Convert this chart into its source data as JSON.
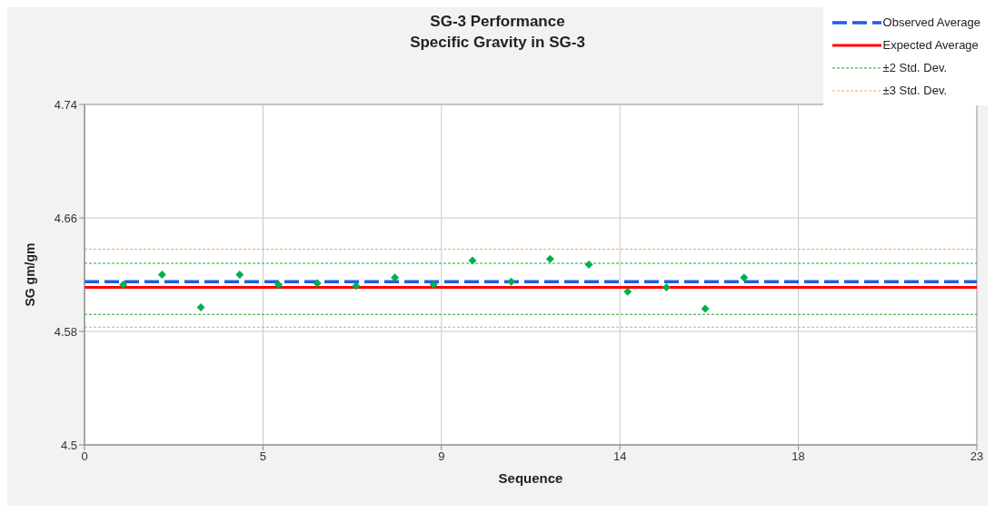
{
  "chart_data": {
    "type": "scatter",
    "title": "SG-3 Performance",
    "subtitle": "Specific Gravity in SG-3",
    "xlabel": "Sequence",
    "ylabel": "SG gm/gm",
    "x": [
      1,
      2,
      3,
      4,
      5,
      6,
      7,
      8,
      9,
      10,
      11,
      12,
      13,
      14,
      15,
      16,
      17
    ],
    "series": [
      {
        "color": "#00b050",
        "values": [
          4.613,
          4.62,
          4.597,
          4.62,
          4.613,
          4.614,
          4.612,
          4.618,
          4.613,
          4.63,
          4.615,
          4.631,
          4.627,
          4.608,
          4.611,
          4.596,
          4.618
        ]
      }
    ],
    "marker": "diamond",
    "grid": true,
    "legend": "top right",
    "xlim": [
      0,
      23
    ],
    "xticks": [
      0,
      {
        "value": 4.6,
        "label": "5"
      },
      {
        "value": 9.2,
        "label": "9"
      },
      {
        "value": 13.8,
        "label": "14"
      },
      {
        "value": 18.4,
        "label": "18"
      },
      23
    ],
    "ylim": [
      4.5,
      4.74
    ],
    "yticks": [
      4.5,
      4.58,
      4.66,
      4.74
    ],
    "ref_lines": [
      {
        "axis": "y",
        "value": 4.615,
        "label": "Observed Average",
        "color": "#1f5fe0",
        "line_style": "dashed"
      },
      {
        "axis": "y",
        "value": 4.611,
        "label": "Expected Average",
        "color": "#ff0000",
        "line_style": "solid"
      },
      {
        "axis": "y",
        "value": 4.628,
        "label": "±2 Std. Dev.",
        "color": "#2ca02c",
        "line_style": "dotted"
      },
      {
        "axis": "y",
        "value": 4.592,
        "label": null,
        "color": "#2ca02c",
        "line_style": "dotted"
      },
      {
        "axis": "y",
        "value": 4.638,
        "label": "±3 Std. Dev.",
        "color": "#f4a460",
        "line_style": "dotted"
      },
      {
        "axis": "y",
        "value": 4.583,
        "label": null,
        "color": "#f4a460",
        "line_style": "dotted"
      }
    ]
  }
}
